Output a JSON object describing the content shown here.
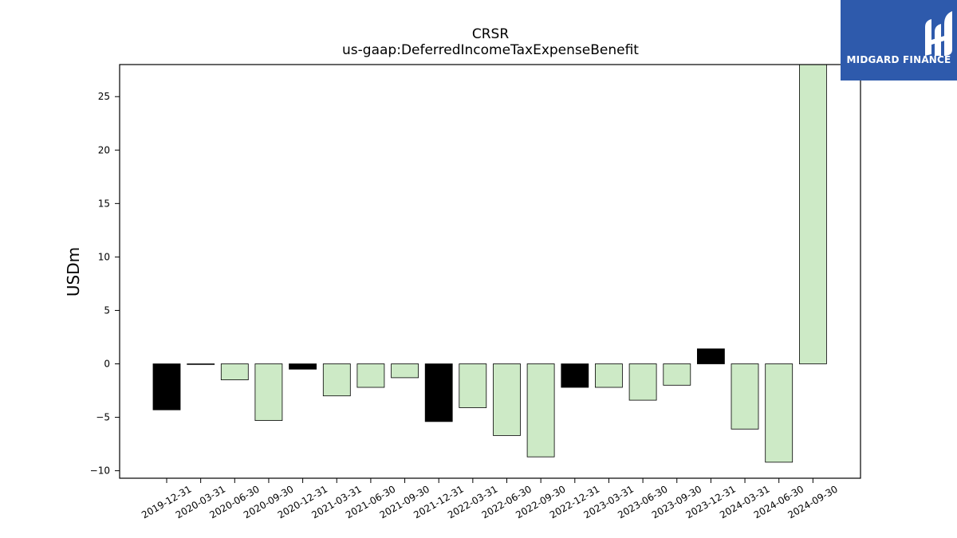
{
  "chart_data": {
    "type": "bar",
    "title": "CRSR",
    "subtitle": "us-gaap:DeferredIncomeTaxExpenseBenefit",
    "ylabel": "USDm",
    "xlabel": "",
    "ylim": [
      -10.7,
      28
    ],
    "yticks": [
      -10,
      -5,
      0,
      5,
      10,
      15,
      20,
      25
    ],
    "grid": false,
    "categories": [
      "2019-12-31",
      "2020-03-31",
      "2020-06-30",
      "2020-09-30",
      "2020-12-31",
      "2021-03-31",
      "2021-06-30",
      "2021-09-30",
      "2021-12-31",
      "2022-03-31",
      "2022-06-30",
      "2022-09-30",
      "2022-12-31",
      "2023-03-31",
      "2023-06-30",
      "2023-09-30",
      "2023-12-31",
      "2024-03-31",
      "2024-06-30",
      "2024-09-30"
    ],
    "values": [
      -4.3,
      -0.05,
      -1.5,
      -5.3,
      -0.5,
      -3.0,
      -2.2,
      -1.3,
      -5.4,
      -4.1,
      -6.7,
      -8.7,
      -2.2,
      -2.2,
      -3.4,
      -2.0,
      1.4,
      -6.1,
      -9.2,
      28.0
    ],
    "colors": [
      "#000000",
      "#000000",
      "#cdeac6",
      "#cdeac6",
      "#000000",
      "#cdeac6",
      "#cdeac6",
      "#cdeac6",
      "#000000",
      "#cdeac6",
      "#cdeac6",
      "#cdeac6",
      "#000000",
      "#cdeac6",
      "#cdeac6",
      "#cdeac6",
      "#000000",
      "#cdeac6",
      "#cdeac6",
      "#cdeac6"
    ]
  },
  "logo": {
    "text": "MIDGARD FINANCE",
    "color": "#2e5aac"
  }
}
